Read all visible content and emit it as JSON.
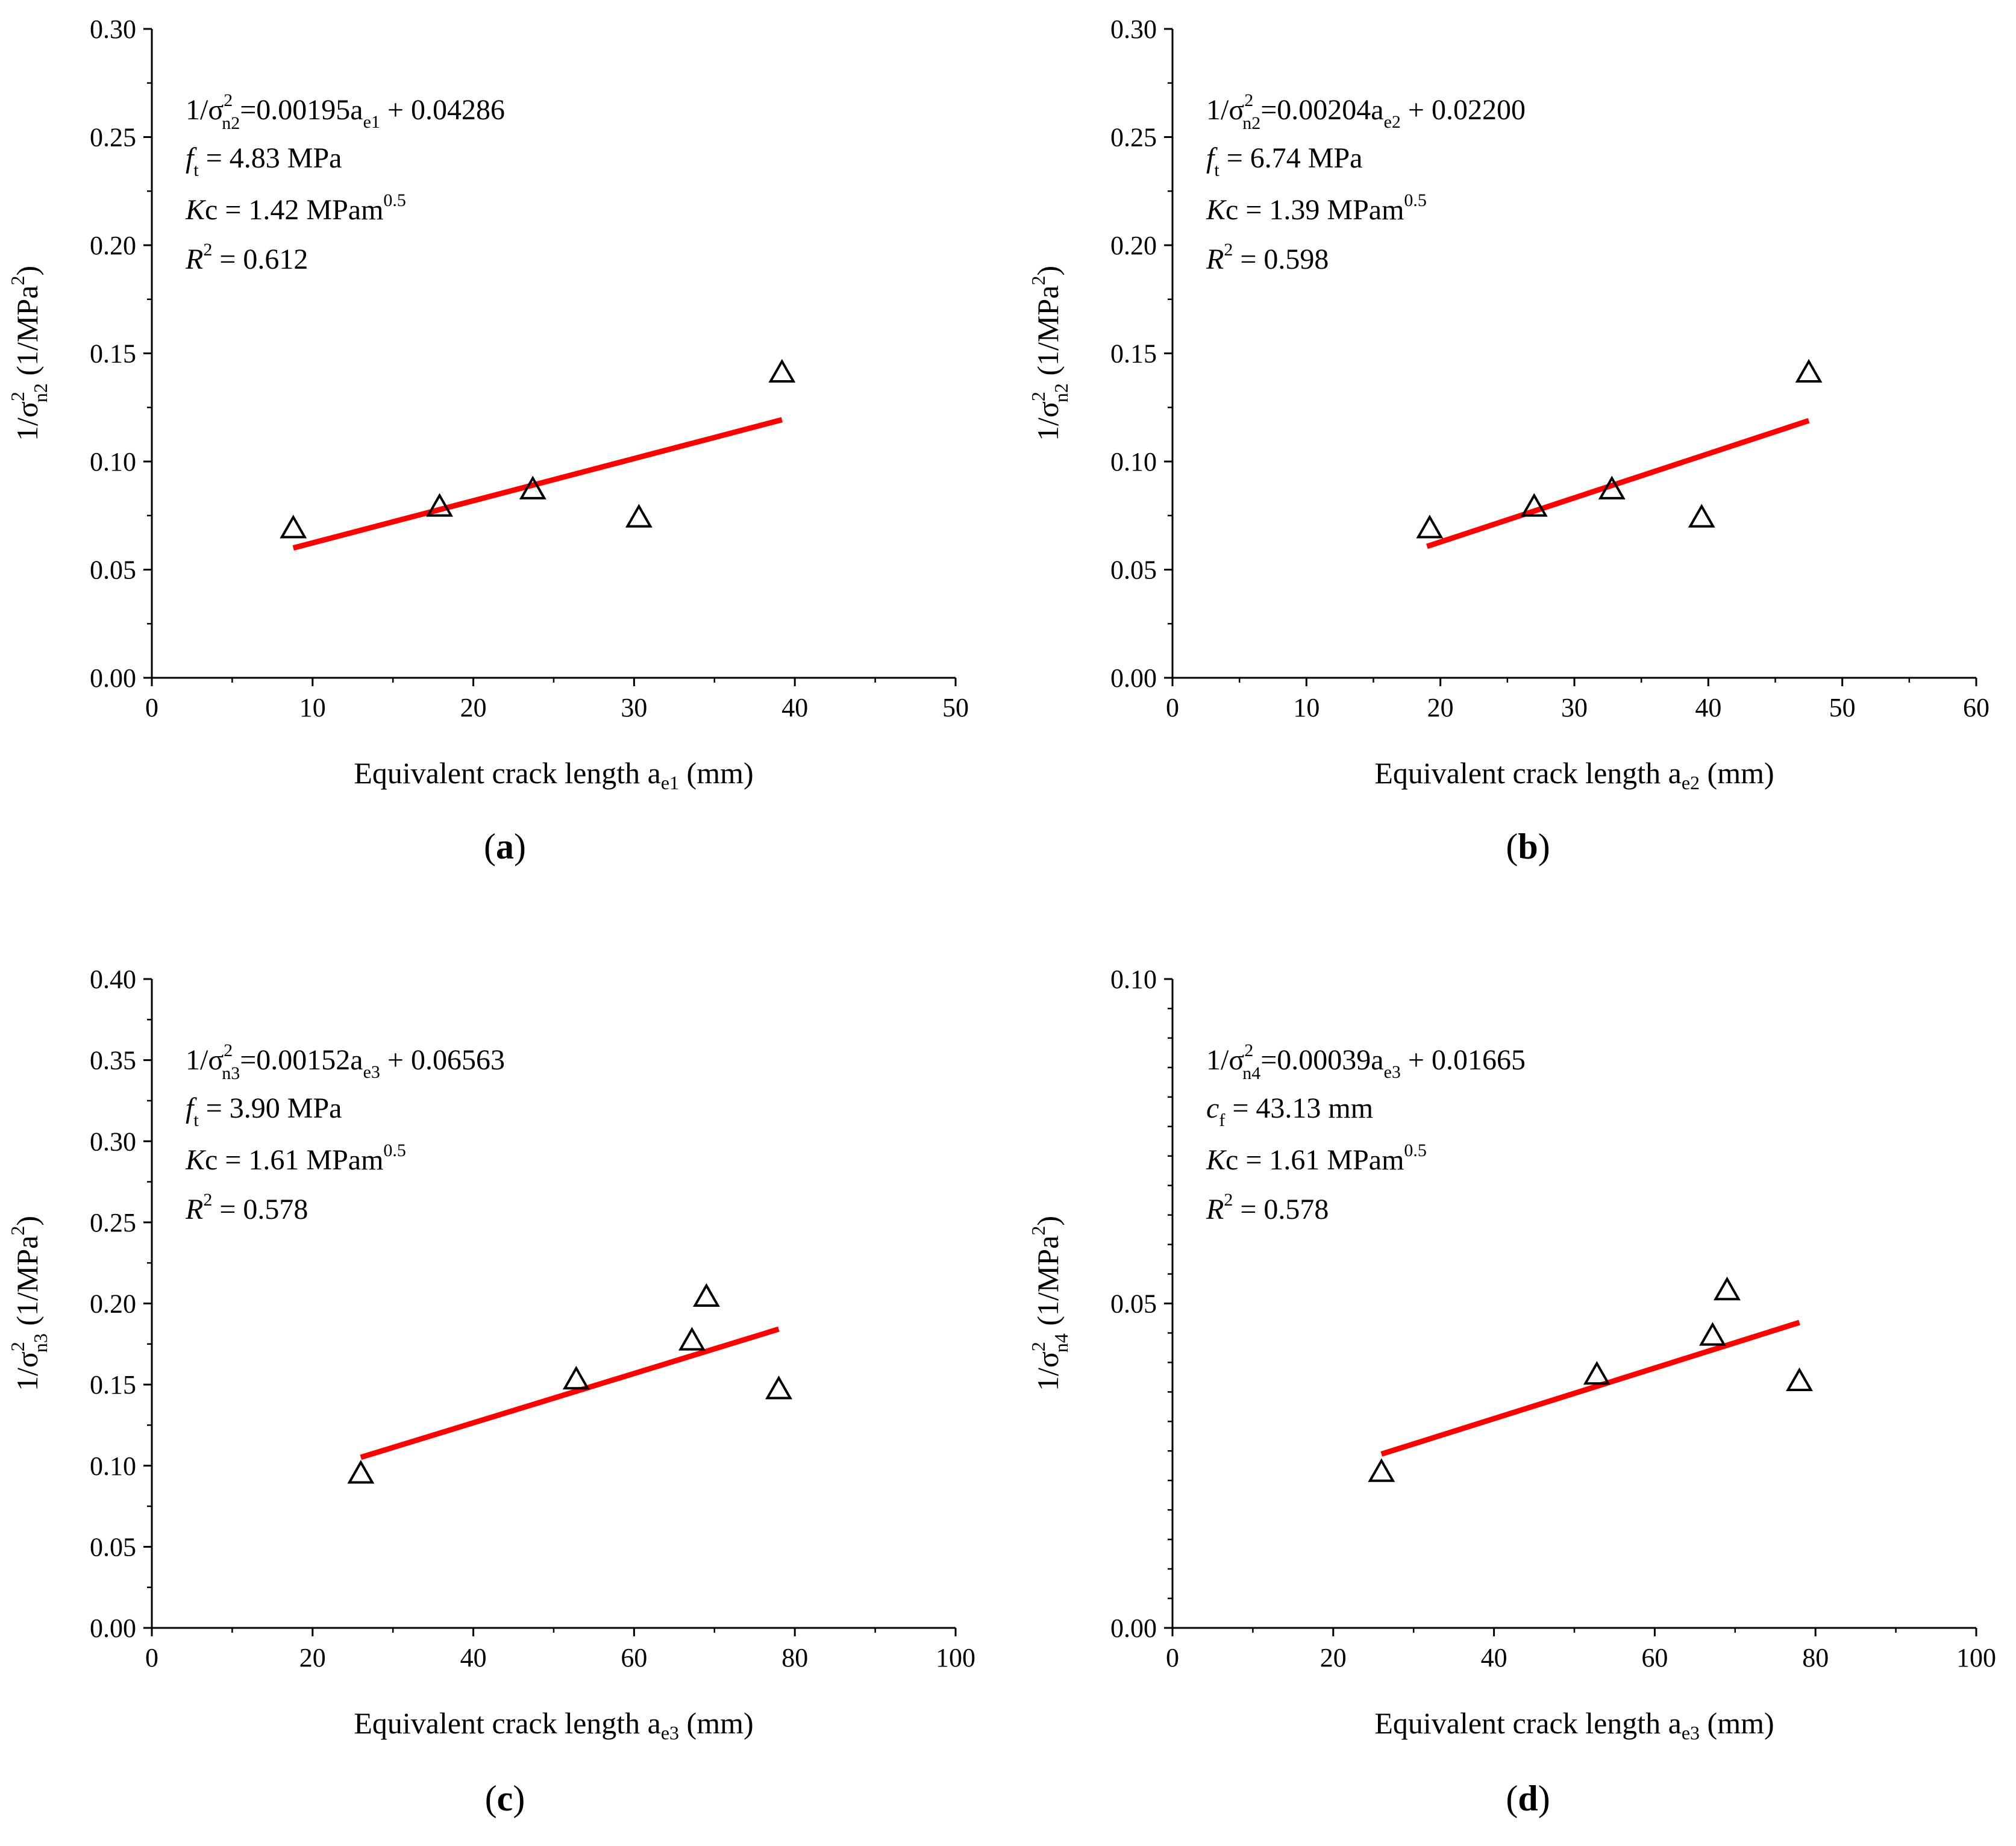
{
  "chart_data": [
    {
      "type": "scatter",
      "panel_label": "a",
      "xlim": [
        0,
        50
      ],
      "ylim": [
        0,
        0.3
      ],
      "xticks": [
        0,
        10,
        20,
        30,
        40,
        50
      ],
      "yticks": [
        0.0,
        0.05,
        0.1,
        0.15,
        0.2,
        0.25,
        0.3
      ],
      "ytick_labels": [
        "0.00",
        "0.05",
        "0.10",
        "0.15",
        "0.20",
        "0.25",
        "0.30"
      ],
      "xlabel": {
        "main": "Equivalent crack length a",
        "sub": "e1",
        "tail": " (mm)"
      },
      "ylabel": {
        "pre": "1/σ",
        "sup": "2",
        "sub": "n2",
        "tail": " (1/MPa",
        "tail_sup": "2",
        "end": ")"
      },
      "points": {
        "x": [
          8.8,
          17.9,
          23.7,
          30.3,
          39.2
        ],
        "y": [
          0.069,
          0.079,
          0.087,
          0.074,
          0.141
        ]
      },
      "fit": {
        "slope": 0.00195,
        "intercept": 0.04286,
        "x_range": [
          8.8,
          39.2
        ],
        "color": "#ff0000"
      },
      "marker": "triangle",
      "annotations": {
        "eq": {
          "pre": "1/σ",
          "sup": "2",
          "sub": "n2",
          "body": "=0.00195a",
          "body_sub": "e1",
          "tail": " + 0.04286"
        },
        "line2": {
          "sym": "f",
          "sub": "t",
          "text": " = 4.83 MPa"
        },
        "line3": {
          "sym": "K",
          "text": "c = 1.42 MPam",
          "sup": "0.5"
        },
        "line4": {
          "sym": "R",
          "sup": "2",
          "text": "  = 0.612"
        }
      }
    },
    {
      "type": "scatter",
      "panel_label": "b",
      "xlim": [
        0,
        60
      ],
      "ylim": [
        0,
        0.3
      ],
      "xticks": [
        0,
        10,
        20,
        30,
        40,
        50,
        60
      ],
      "yticks": [
        0.0,
        0.05,
        0.1,
        0.15,
        0.2,
        0.25,
        0.3
      ],
      "ytick_labels": [
        "0.00",
        "0.05",
        "0.10",
        "0.15",
        "0.20",
        "0.25",
        "0.30"
      ],
      "xlabel": {
        "main": "Equivalent crack length a",
        "sub": "e2",
        "tail": " (mm)"
      },
      "ylabel": {
        "pre": "1/σ",
        "sup": "2",
        "sub": "n2",
        "tail": " (1/MPa",
        "tail_sup": "2",
        "end": ")"
      },
      "points": {
        "x": [
          19.2,
          27.0,
          32.8,
          39.5,
          47.5
        ],
        "y": [
          0.069,
          0.079,
          0.087,
          0.074,
          0.141
        ]
      },
      "fit": {
        "slope": 0.00204,
        "intercept": 0.022,
        "x_range": [
          19.0,
          47.5
        ],
        "color": "#ff0000"
      },
      "marker": "triangle",
      "annotations": {
        "eq": {
          "pre": "1/σ",
          "sup": "2",
          "sub": "n2",
          "body": "=0.00204a",
          "body_sub": "e2",
          "tail": " + 0.02200"
        },
        "line2": {
          "sym": "f",
          "sub": "t",
          "text": " = 6.74 MPa"
        },
        "line3": {
          "sym": "K",
          "text": "c = 1.39 MPam",
          "sup": "0.5"
        },
        "line4": {
          "sym": "R",
          "sup": "2",
          "text": "  = 0.598"
        }
      }
    },
    {
      "type": "scatter",
      "panel_label": "c",
      "xlim": [
        0,
        100
      ],
      "ylim": [
        0,
        0.4
      ],
      "xticks": [
        0,
        20,
        40,
        60,
        80,
        100
      ],
      "yticks": [
        0.0,
        0.05,
        0.1,
        0.15,
        0.2,
        0.25,
        0.3,
        0.35,
        0.4
      ],
      "ytick_labels": [
        "0.00",
        "0.05",
        "0.10",
        "0.15",
        "0.20",
        "0.25",
        "0.30",
        "0.35",
        "0.40"
      ],
      "xlabel": {
        "main": "Equivalent crack length a",
        "sub": "e3",
        "tail": " (mm)"
      },
      "ylabel": {
        "pre": "1/σ",
        "sup": "2",
        "sub": "n3",
        "tail": " (1/MPa",
        "tail_sup": "2",
        "end": ")"
      },
      "points": {
        "x": [
          26.0,
          52.8,
          67.2,
          69.0,
          78.0
        ],
        "y": [
          0.095,
          0.153,
          0.177,
          0.204,
          0.147
        ]
      },
      "fit": {
        "slope": 0.00152,
        "intercept": 0.06563,
        "x_range": [
          26.0,
          78.0
        ],
        "color": "#ff0000"
      },
      "marker": "triangle",
      "annotations": {
        "eq": {
          "pre": "1/σ",
          "sup": "2",
          "sub": "n3",
          "body": "=0.00152a",
          "body_sub": "e3",
          "tail": " + 0.06563"
        },
        "line2": {
          "sym": "f",
          "sub": "t",
          "text": " = 3.90 MPa"
        },
        "line3": {
          "sym": "K",
          "text": "c = 1.61 MPam",
          "sup": "0.5"
        },
        "line4": {
          "sym": "R",
          "sup": "2",
          "text": "  = 0.578"
        }
      }
    },
    {
      "type": "scatter",
      "panel_label": "d",
      "xlim": [
        0,
        100
      ],
      "ylim": [
        0,
        0.1
      ],
      "xticks": [
        0,
        20,
        40,
        60,
        80,
        100
      ],
      "yticks": [
        0.0,
        0.05,
        0.1
      ],
      "ytick_labels": [
        "0.00",
        "0.05",
        "0.10"
      ],
      "minor_yticks": 10,
      "xlabel": {
        "main": "Equivalent crack length a",
        "sub": "e3",
        "tail": " (mm)"
      },
      "ylabel": {
        "pre": "1/σ",
        "sup": "2",
        "sub": "n4",
        "tail": " (1/MPa",
        "tail_sup": "2",
        "end": ")"
      },
      "points": {
        "x": [
          26.0,
          52.8,
          67.2,
          69.0,
          78.0
        ],
        "y": [
          0.024,
          0.039,
          0.045,
          0.052,
          0.038
        ]
      },
      "fit": {
        "slope": 0.00039,
        "intercept": 0.01665,
        "x_range": [
          26.0,
          78.0
        ],
        "color": "#ff0000"
      },
      "marker": "triangle",
      "annotations": {
        "eq": {
          "pre": "1/σ",
          "sup": "2",
          "sub": "n4",
          "body": "=0.00039a",
          "body_sub": "e3",
          "tail": " + 0.01665"
        },
        "line2": {
          "sym": "c",
          "sub": "f",
          "text": " = 43.13 mm"
        },
        "line3": {
          "sym": "K",
          "text": "c = 1.61 MPam",
          "sup": "0.5"
        },
        "line4": {
          "sym": "R",
          "sup": "2",
          "text": "  = 0.578"
        }
      }
    }
  ]
}
